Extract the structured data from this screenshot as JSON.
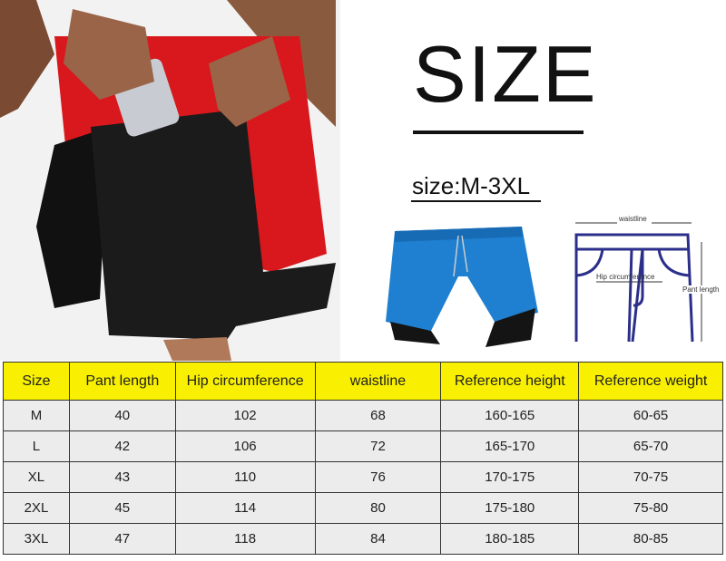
{
  "header": {
    "title": "SIZE",
    "subtitle": "size:M-3XL"
  },
  "diagram": {
    "waist_label": "waistline",
    "hip_label": "Hip circumference",
    "length_label": "Pant length",
    "line_color": "#2b2f8a"
  },
  "colors": {
    "header_bg": "#f8f000",
    "cell_bg": "#ececec",
    "shorts_red": "#d8181c",
    "shorts_blue": "#1f7fd0"
  },
  "table": {
    "headers": [
      "Size",
      "Pant length",
      "Hip circumference",
      "waistline",
      "Reference height",
      "Reference weight"
    ],
    "rows": [
      [
        "M",
        "40",
        "102",
        "68",
        "160-165",
        "60-65"
      ],
      [
        "L",
        "42",
        "106",
        "72",
        "165-170",
        "65-70"
      ],
      [
        "XL",
        "43",
        "110",
        "76",
        "170-175",
        "70-75"
      ],
      [
        "2XL",
        "45",
        "114",
        "80",
        "175-180",
        "75-80"
      ],
      [
        "3XL",
        "47",
        "118",
        "84",
        "180-185",
        "80-85"
      ]
    ]
  }
}
